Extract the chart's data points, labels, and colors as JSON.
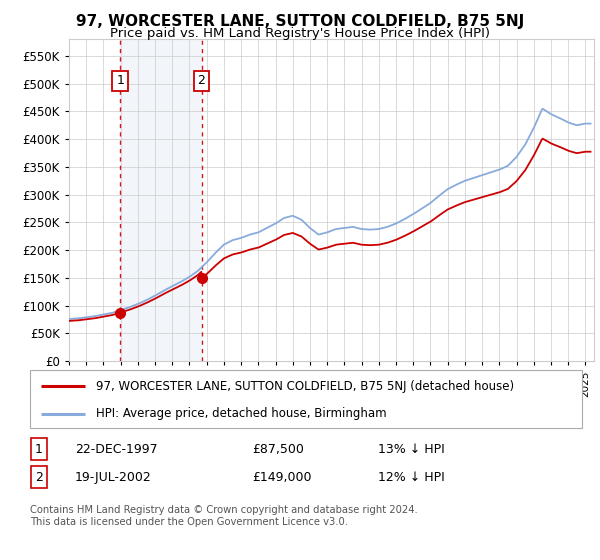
{
  "title": "97, WORCESTER LANE, SUTTON COLDFIELD, B75 5NJ",
  "subtitle": "Price paid vs. HM Land Registry's House Price Index (HPI)",
  "ylim": [
    0,
    580000
  ],
  "yticks": [
    0,
    50000,
    100000,
    150000,
    200000,
    250000,
    300000,
    350000,
    400000,
    450000,
    500000,
    550000
  ],
  "xlim_start": 1995.0,
  "xlim_end": 2025.5,
  "sale1_x": 1997.97,
  "sale1_y": 87500,
  "sale2_x": 2002.7,
  "sale2_y": 149000,
  "legend_property": "97, WORCESTER LANE, SUTTON COLDFIELD, B75 5NJ (detached house)",
  "legend_hpi": "HPI: Average price, detached house, Birmingham",
  "table_row1": [
    "1",
    "22-DEC-1997",
    "£87,500",
    "13% ↓ HPI"
  ],
  "table_row2": [
    "2",
    "19-JUL-2002",
    "£149,000",
    "12% ↓ HPI"
  ],
  "footer": "Contains HM Land Registry data © Crown copyright and database right 2024.\nThis data is licensed under the Open Government Licence v3.0.",
  "property_line_color": "#cc0000",
  "hpi_line_color": "#88aadd",
  "shade_color": "#dce8f5",
  "sale_marker_color": "#cc0000",
  "dashed_line_color": "#cc0000",
  "title_fontsize": 11,
  "subtitle_fontsize": 9.5
}
